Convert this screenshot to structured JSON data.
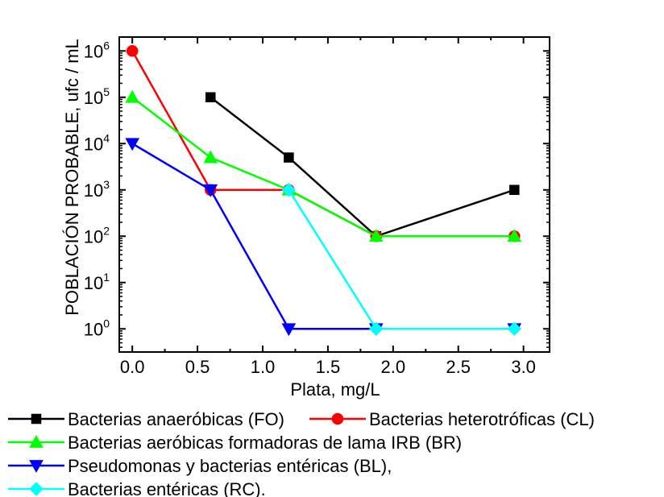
{
  "chart_data": {
    "type": "line",
    "xlabel": "Plata, mg/L",
    "ylabel": "POBLACIÓN PROBABLE, ufc / mL",
    "xlim": [
      -0.1,
      3.2
    ],
    "ylim": [
      -0.5,
      6.3
    ],
    "y_scale": "log",
    "x_ticks": [
      "0.0",
      "0.5",
      "1.0",
      "1.5",
      "2.0",
      "2.5",
      "3.0"
    ],
    "y_tick_base": "10",
    "y_tick_exponents": [
      "0",
      "1",
      "2",
      "3",
      "4",
      "5",
      "6"
    ],
    "grid": false,
    "legend_position": "below",
    "series": [
      {
        "name": "Bacterias anaeróbicas (FO)",
        "color": "#000000",
        "marker": "square",
        "x": [
          0.6,
          1.2,
          1.87,
          2.93
        ],
        "y": [
          100000,
          5000,
          100,
          1000
        ]
      },
      {
        "name": "Bacterias heterotróficas (CL)",
        "color": "#ff0000",
        "marker": "circle",
        "x": [
          0.0,
          0.6,
          1.2,
          1.87,
          2.93
        ],
        "y": [
          1000000,
          1000,
          1000,
          100,
          100
        ]
      },
      {
        "name": "Bacterias aeróbicas formadoras de lama IRB (BR)",
        "color": "#00ff00",
        "marker": "triangle-up",
        "x": [
          0.0,
          0.6,
          1.2,
          1.87,
          2.93
        ],
        "y": [
          100000,
          5000,
          1000,
          100,
          100
        ]
      },
      {
        "name": "Pseudomonas y bacterias entéricas (BL),",
        "color": "#0000ff",
        "marker": "triangle-down",
        "x": [
          0.0,
          0.6,
          1.2,
          1.87,
          2.93
        ],
        "y": [
          10000,
          1000,
          1,
          1,
          1
        ]
      },
      {
        "name": "Bacterias entéricas (RC).",
        "color": "#00ffff",
        "marker": "diamond",
        "x": [
          1.2,
          1.87,
          2.93
        ],
        "y": [
          1000,
          1,
          1
        ]
      }
    ]
  }
}
